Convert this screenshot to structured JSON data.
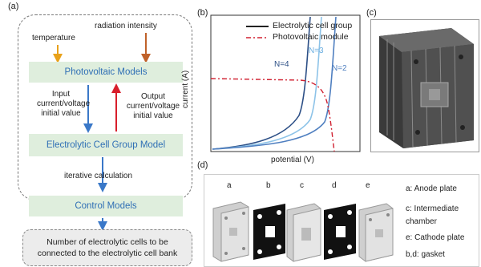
{
  "panel_a": {
    "label": "(a)",
    "temperature": "temperature",
    "radiation": "radiation intensity",
    "pv_models": "Photovoltaic Models",
    "input_line1": "Input",
    "input_line2": "current/voltage",
    "input_line3": "initial value",
    "output_line1": "Output",
    "output_line2": "current/voltage",
    "output_line3": "initial value",
    "ec_model": "Electrolytic Cell Group Model",
    "iterative": "iterative calculation",
    "control": "Control Models",
    "result_line1": "Number of electrolytic cells to be",
    "result_line2": "connected to the electrolytic cell bank",
    "colors": {
      "box_fill": "#dfeedd",
      "box_text": "#2f6fb5",
      "arrow_blue": "#3a78c8",
      "arrow_orange": "#e8a11a",
      "arrow_brown": "#c0622a",
      "arrow_red": "#d81e2b"
    }
  },
  "panel_b": {
    "label": "(b)",
    "legend": [
      "Electrolytic cell group",
      "Photovoltaic module"
    ],
    "ylabel": "current (A)",
    "xlabel": "potential (V)",
    "curve_labels": [
      "N=4",
      "N=3",
      "N=2"
    ],
    "colors": {
      "curve_dark": "#2c4f86",
      "curve_mid": "#4f7fc0",
      "curve_light": "#8dc3e8",
      "pv": "#d02030"
    }
  },
  "panel_c": {
    "label": "(c)",
    "image_name": "assembled electrolytic cell stack render"
  },
  "panel_d": {
    "label": "(d)",
    "part_letters": [
      "a",
      "b",
      "c",
      "d",
      "e"
    ],
    "legend_lines": [
      "a: Anode plate",
      "c: Intermediate",
      "chamber",
      "e: Cathode plate",
      "b,d: gasket"
    ]
  }
}
